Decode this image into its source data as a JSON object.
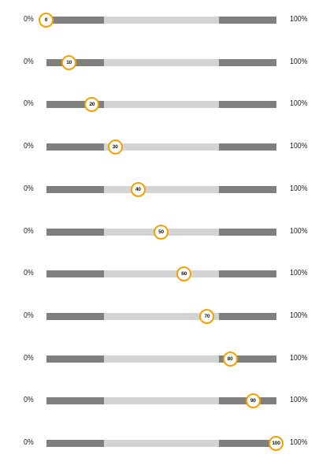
{
  "colors": {
    "track_outer": "#7f7f7f",
    "track_middle": "#d3d3d3",
    "thumb_border": "#f5a000",
    "thumb_fill": "#ffffff"
  },
  "sliders": [
    {
      "min_label": "0%",
      "max_label": "100%",
      "value": 0,
      "value_label": "0"
    },
    {
      "min_label": "0%",
      "max_label": "100%",
      "value": 10,
      "value_label": "10"
    },
    {
      "min_label": "0%",
      "max_label": "100%",
      "value": 20,
      "value_label": "20"
    },
    {
      "min_label": "0%",
      "max_label": "100%",
      "value": 30,
      "value_label": "30"
    },
    {
      "min_label": "0%",
      "max_label": "100%",
      "value": 40,
      "value_label": "40"
    },
    {
      "min_label": "0%",
      "max_label": "100%",
      "value": 50,
      "value_label": "50"
    },
    {
      "min_label": "0%",
      "max_label": "100%",
      "value": 60,
      "value_label": "60"
    },
    {
      "min_label": "0%",
      "max_label": "100%",
      "value": 70,
      "value_label": "70"
    },
    {
      "min_label": "0%",
      "max_label": "100%",
      "value": 80,
      "value_label": "80"
    },
    {
      "min_label": "0%",
      "max_label": "100%",
      "value": 90,
      "value_label": "90"
    },
    {
      "min_label": "0%",
      "max_label": "100%",
      "value": 100,
      "value_label": "100"
    }
  ]
}
